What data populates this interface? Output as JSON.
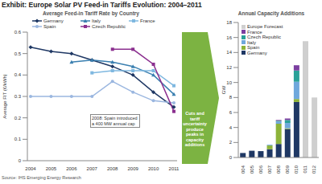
{
  "title": "Exhibit: Europe Solar PV Feed-in Tariffs Evolution: 2004–2011",
  "source": "Source: IHS Emerging Energy Research",
  "callout": "Cuts and tariff uncertainty produce peaks in capacity additions",
  "chart_data": [
    {
      "type": "line",
      "title": "Average Feed-in Tariff Rate by Country",
      "y_label": "Average FIT (€/kWh)",
      "annotation": "2008: Spain introduced a 400 MW annual cap",
      "categories": [
        "2004",
        "2005",
        "2006",
        "2007",
        "2008",
        "2009",
        "2010",
        "2011"
      ],
      "ylim": [
        0,
        0.6
      ],
      "yticks": [
        0,
        0.1,
        0.2,
        0.3,
        0.4,
        0.5,
        0.6
      ],
      "grid": false,
      "legend": "top",
      "series": [
        {
          "name": "Germany",
          "color": "#1f3864",
          "marker": "diamond",
          "values": [
            0.53,
            0.51,
            0.5,
            0.47,
            0.44,
            0.4,
            0.32,
            0.25
          ]
        },
        {
          "name": "Italy",
          "color": "#3a7fb0",
          "marker": "triangle",
          "values": [
            null,
            null,
            0.46,
            0.47,
            0.46,
            0.44,
            0.4,
            0.31
          ]
        },
        {
          "name": "France",
          "color": "#7fb8e0",
          "marker": "square",
          "values": [
            null,
            null,
            null,
            0.41,
            0.42,
            0.42,
            0.42,
            0.35
          ]
        },
        {
          "name": "Spain",
          "color": "#9bb7e0",
          "marker": "circle",
          "values": [
            0.3,
            0.3,
            0.3,
            0.3,
            0.37,
            0.32,
            0.28,
            0.27
          ]
        },
        {
          "name": "Czech Republic",
          "color": "#8b2f8f",
          "marker": "square",
          "values": [
            null,
            null,
            null,
            null,
            0.52,
            0.52,
            0.45,
            0.23
          ]
        }
      ]
    },
    {
      "type": "bar",
      "title": "Annual Capacity Additions",
      "y_label": "GW",
      "stacked": true,
      "grid": false,
      "legend": "top-left",
      "categories": [
        "2004",
        "2005",
        "2006",
        "2007",
        "2008",
        "2009",
        "2010",
        "2011",
        "2012"
      ],
      "ylim": [
        0,
        18
      ],
      "yticks": [
        0,
        2,
        4,
        6,
        8,
        10,
        12,
        14,
        16,
        18
      ],
      "series": [
        {
          "name": "Germany",
          "color": "#1f3864",
          "values": [
            0.6,
            0.9,
            0.85,
            1.1,
            1.8,
            3.8,
            7.4,
            null,
            null
          ]
        },
        {
          "name": "Spain",
          "color": "#8db33a",
          "values": [
            null,
            null,
            null,
            0.5,
            2.7,
            0.1,
            0.4,
            null,
            null
          ]
        },
        {
          "name": "Italy",
          "color": "#6fa8dc",
          "values": [
            null,
            null,
            null,
            0.1,
            0.3,
            0.7,
            2.3,
            null,
            null
          ]
        },
        {
          "name": "Czech Republic",
          "color": "#2aa198",
          "values": [
            null,
            null,
            null,
            null,
            0.1,
            0.4,
            1.5,
            null,
            null
          ]
        },
        {
          "name": "France",
          "color": "#7b3fa0",
          "values": [
            null,
            null,
            null,
            null,
            0.1,
            0.2,
            0.7,
            null,
            null
          ]
        },
        {
          "name": "Europe Forecast",
          "color": "#cfcfcf",
          "values": [
            null,
            null,
            null,
            null,
            null,
            null,
            null,
            15.5,
            8.0
          ]
        }
      ]
    }
  ]
}
